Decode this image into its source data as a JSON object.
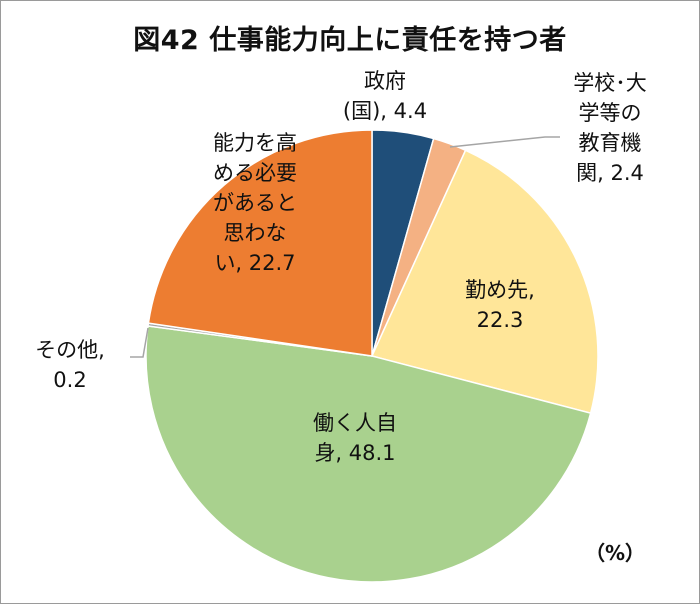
{
  "chart_data": {
    "type": "pie",
    "title": "図42 仕事能力向上に責任を持つ者",
    "unit": "（%）",
    "start_angle": "12 o'clock, clockwise",
    "categories": [
      "政府(国)",
      "学校･大学等の教育機関",
      "勤め先",
      "働く人自身",
      "その他",
      "能力を高める必要があると思わない"
    ],
    "values": [
      4.4,
      2.4,
      22.3,
      48.1,
      0.2,
      22.7
    ],
    "colors": [
      "#1f4e79",
      "#f4b183",
      "#ffe699",
      "#a9d18e",
      "#a5a5a5",
      "#ed7d31"
    ],
    "labels": [
      {
        "lines": [
          "政府",
          "(国), 4.4"
        ]
      },
      {
        "lines": [
          "学校･大",
          "学等の",
          "教育機",
          "関, 2.4"
        ]
      },
      {
        "lines": [
          "勤め先,",
          "22.3"
        ]
      },
      {
        "lines": [
          "働く人自",
          "身, 48.1"
        ]
      },
      {
        "lines": [
          "その他,",
          "0.2"
        ]
      },
      {
        "lines": [
          "能力を高",
          "める必要",
          "があると",
          "思わな",
          "い, 22.7"
        ]
      }
    ]
  }
}
